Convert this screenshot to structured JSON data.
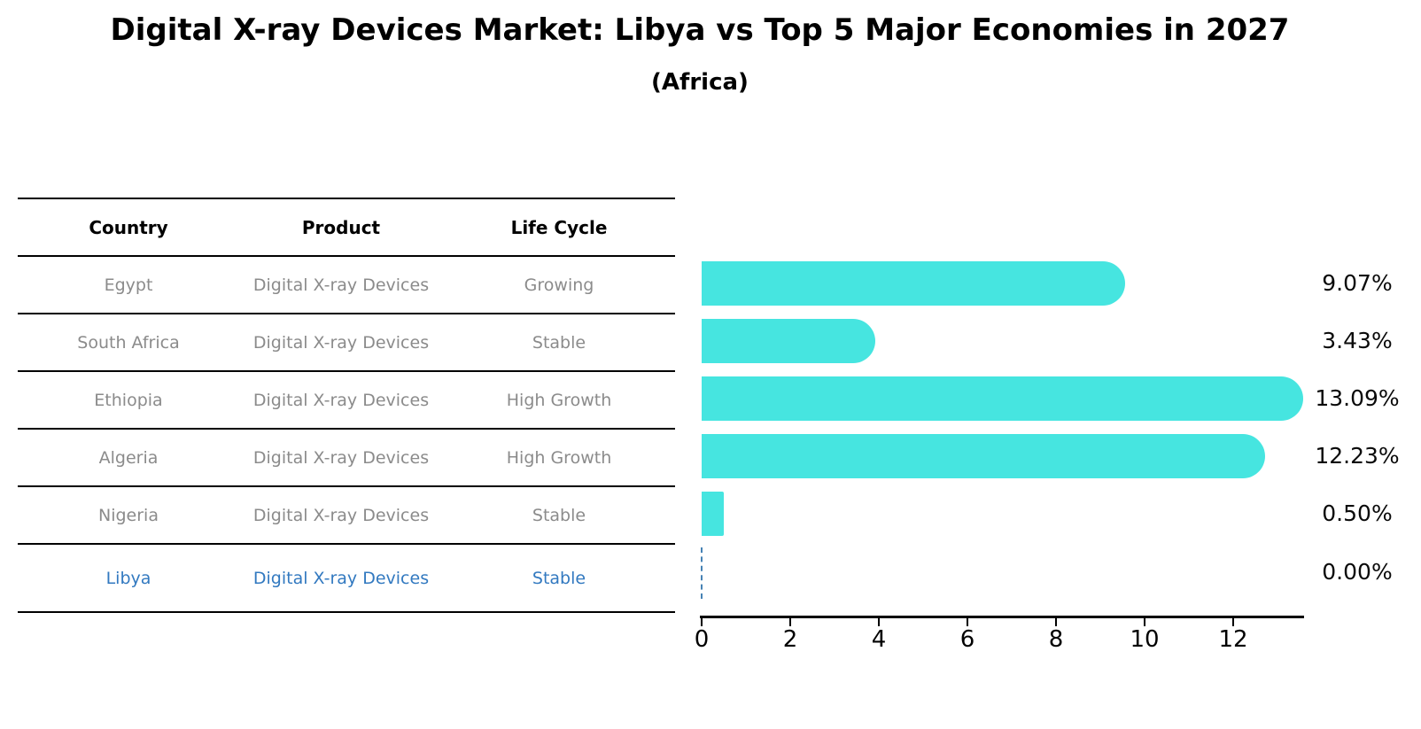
{
  "title": "Digital X-ray Devices Market: Libya vs Top 5 Major Economies in 2027",
  "subtitle": "(Africa)",
  "table": {
    "headers": [
      "Country",
      "Product",
      "Life Cycle"
    ],
    "rows": [
      {
        "country": "Egypt",
        "product": "Digital X-ray Devices",
        "life_cycle": "Growing",
        "highlight": false
      },
      {
        "country": "South Africa",
        "product": "Digital X-ray Devices",
        "life_cycle": "Stable",
        "highlight": false
      },
      {
        "country": "Ethiopia",
        "product": "Digital X-ray Devices",
        "life_cycle": "High Growth",
        "highlight": false
      },
      {
        "country": "Algeria",
        "product": "Digital X-ray Devices",
        "life_cycle": "High Growth",
        "highlight": false
      },
      {
        "country": "Nigeria",
        "product": "Digital X-ray Devices",
        "life_cycle": "Stable",
        "highlight": true
      }
    ],
    "highlight_row": {
      "country": "Libya",
      "product": "Digital X-ray Devices",
      "life_cycle": "Stable"
    }
  },
  "chart_data": {
    "type": "bar",
    "orientation": "horizontal",
    "title": "Digital X-ray Devices Market: Libya vs Top 5 Major Economies in 2027 (Africa)",
    "categories": [
      "Egypt",
      "South Africa",
      "Ethiopia",
      "Algeria",
      "Nigeria",
      "Libya"
    ],
    "values": [
      9.07,
      3.43,
      13.09,
      12.23,
      0.5,
      0.0
    ],
    "value_labels": [
      "9.07%",
      "3.43%",
      "13.09%",
      "12.23%",
      "0.50%",
      "0.00%"
    ],
    "xlabel": "",
    "ylabel": "",
    "xlim": [
      0,
      13.6
    ],
    "x_ticks": [
      0,
      2,
      4,
      6,
      8,
      10,
      12
    ],
    "grid": false,
    "legend": null,
    "bar_color": "#46e5e0",
    "zero_marker": "dashed-line",
    "zero_marker_color": "#4682b4",
    "highlight_text_color": "#3279c0"
  }
}
